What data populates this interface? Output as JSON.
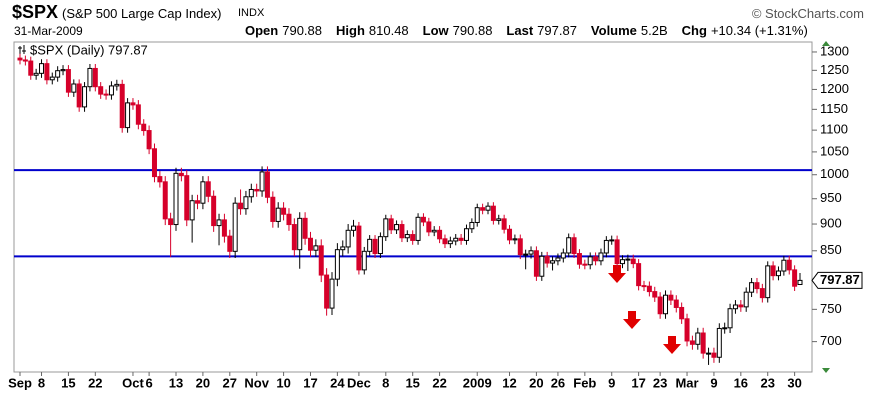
{
  "header": {
    "symbol": "$SPX",
    "name": "(S&P 500 Large Cap Index)",
    "exchange": "INDX",
    "source": "© StockCharts.com",
    "date": "31-Mar-2009",
    "quote": [
      {
        "label": "Open",
        "value": 790.88
      },
      {
        "label": "High",
        "value": 810.48
      },
      {
        "label": "Low",
        "value": 790.88
      },
      {
        "label": "Last",
        "value": 797.87
      },
      {
        "label": "Volume",
        "value": "5.2B"
      },
      {
        "label": "Chg",
        "value": "+10.34 (+1.31%)"
      }
    ]
  },
  "chart_data": {
    "type": "candlestick",
    "legend": "$SPX (Daily) 797.87",
    "log_scale": true,
    "grid": false,
    "up_color": "#000000",
    "down_color": "#d6002a",
    "line_color": "#0000cc",
    "ylim": [
      656,
      1328
    ],
    "yticks": [
      700,
      750,
      800,
      850,
      900,
      950,
      1000,
      1050,
      1100,
      1150,
      1200,
      1250,
      1300
    ],
    "lines": [
      1010,
      840
    ],
    "categories": [
      "Sep",
      null,
      null,
      null,
      "8",
      null,
      null,
      null,
      null,
      "15",
      null,
      null,
      null,
      null,
      "22",
      null,
      null,
      null,
      null,
      null,
      null,
      "Oct",
      null,
      null,
      "6",
      null,
      null,
      null,
      null,
      "13",
      null,
      null,
      null,
      null,
      "20",
      null,
      null,
      null,
      null,
      "27",
      null,
      null,
      null,
      null,
      "Nov",
      null,
      null,
      null,
      null,
      "10",
      null,
      null,
      null,
      null,
      "17",
      null,
      null,
      null,
      null,
      "24",
      null,
      null,
      null,
      "Dec",
      null,
      null,
      null,
      null,
      "8",
      null,
      null,
      null,
      null,
      "15",
      null,
      null,
      null,
      null,
      "22",
      null,
      null,
      null,
      null,
      null,
      null,
      "2009",
      null,
      null,
      null,
      null,
      null,
      "12",
      null,
      null,
      null,
      null,
      "20",
      null,
      null,
      null,
      "26",
      null,
      null,
      null,
      null,
      "Feb",
      null,
      null,
      null,
      null,
      "9",
      null,
      null,
      null,
      null,
      "17",
      null,
      null,
      null,
      "23",
      null,
      null,
      null,
      null,
      "Mar",
      null,
      null,
      null,
      null,
      "9",
      null,
      null,
      null,
      null,
      "16",
      null,
      null,
      null,
      null,
      "23",
      null,
      null,
      null,
      null,
      "30",
      null
    ],
    "open": [
      1283,
      1278,
      1275,
      1237,
      1242,
      1268,
      1225,
      1232,
      1249,
      1252,
      1193,
      1214,
      1156,
      1207,
      1255,
      1207,
      1188,
      1186,
      1209,
      1213,
      1106,
      1166,
      1161,
      1114,
      1099,
      1057,
      996,
      985,
      910,
      899,
      1003,
      998,
      908,
      946,
      941,
      985,
      955,
      897,
      908,
      877,
      849,
      941,
      930,
      954,
      969,
      966,
      1006,
      953,
      905,
      931,
      919,
      899,
      852,
      911,
      873,
      851,
      859,
      807,
      752,
      800,
      852,
      857,
      888,
      896,
      816,
      849,
      871,
      845,
      876,
      910,
      889,
      899,
      874,
      880,
      869,
      913,
      904,
      885,
      888,
      872,
      863,
      868,
      873,
      869,
      891,
      903,
      932,
      927,
      935,
      907,
      910,
      890,
      870,
      872,
      843,
      844,
      850,
      805,
      840,
      828,
      832,
      837,
      846,
      874,
      845,
      826,
      825,
      839,
      832,
      846,
      869,
      870,
      827,
      834,
      835,
      827,
      789,
      788,
      779,
      770,
      743,
      773,
      765,
      753,
      735,
      701,
      696,
      713,
      683,
      683,
      677,
      720,
      721,
      751,
      757,
      754,
      778,
      794,
      784,
      769,
      823,
      806,
      814,
      833,
      816,
      790.88
    ],
    "high": [
      1295,
      1290,
      1287,
      1254,
      1280,
      1280,
      1244,
      1261,
      1264,
      1264,
      1226,
      1226,
      1219,
      1267,
      1267,
      1219,
      1200,
      1221,
      1225,
      1225,
      1178,
      1178,
      1173,
      1126,
      1111,
      1069,
      1008,
      997,
      922,
      1015,
      1015,
      1010,
      958,
      958,
      997,
      997,
      967,
      920,
      920,
      889,
      953,
      969,
      966,
      981,
      981,
      1018,
      1018,
      965,
      943,
      943,
      931,
      911,
      923,
      923,
      885,
      871,
      871,
      819,
      812,
      864,
      869,
      900,
      908,
      904,
      857,
      879,
      879,
      884,
      918,
      918,
      907,
      907,
      888,
      888,
      921,
      921,
      912,
      896,
      896,
      880,
      876,
      881,
      881,
      899,
      911,
      940,
      940,
      943,
      943,
      918,
      918,
      898,
      880,
      880,
      852,
      858,
      858,
      848,
      848,
      840,
      845,
      854,
      882,
      882,
      853,
      834,
      847,
      847,
      854,
      877,
      878,
      878,
      842,
      843,
      843,
      835,
      797,
      796,
      787,
      778,
      781,
      781,
      773,
      761,
      743,
      709,
      721,
      721,
      691,
      691,
      728,
      729,
      759,
      765,
      765,
      786,
      802,
      802,
      792,
      831,
      831,
      822,
      841,
      841,
      824,
      810.48
    ],
    "low": [
      1266,
      1263,
      1225,
      1225,
      1230,
      1213,
      1213,
      1220,
      1237,
      1181,
      1181,
      1144,
      1144,
      1195,
      1195,
      1176,
      1174,
      1174,
      1197,
      1094,
      1094,
      1149,
      1102,
      1087,
      1045,
      984,
      973,
      898,
      839,
      887,
      986,
      896,
      865,
      929,
      929,
      943,
      885,
      860,
      865,
      837,
      837,
      918,
      918,
      942,
      954,
      954,
      941,
      893,
      893,
      907,
      887,
      840,
      818,
      861,
      839,
      839,
      795,
      740,
      741,
      788,
      840,
      845,
      876,
      808,
      808,
      841,
      837,
      837,
      868,
      881,
      881,
      866,
      866,
      861,
      861,
      896,
      877,
      877,
      864,
      855,
      855,
      860,
      861,
      861,
      883,
      895,
      919,
      919,
      899,
      899,
      882,
      862,
      862,
      835,
      817,
      836,
      797,
      797,
      820,
      815,
      824,
      829,
      838,
      837,
      818,
      817,
      817,
      824,
      824,
      838,
      861,
      819,
      819,
      814,
      819,
      781,
      780,
      771,
      762,
      735,
      735,
      757,
      745,
      727,
      693,
      688,
      688,
      675,
      666,
      669,
      669,
      712,
      713,
      743,
      746,
      746,
      770,
      776,
      761,
      761,
      798,
      798,
      806,
      808,
      780,
      790.88
    ],
    "close": [
      1278,
      1275,
      1237,
      1242,
      1268,
      1225,
      1232,
      1249,
      1252,
      1193,
      1214,
      1156,
      1207,
      1255,
      1207,
      1188,
      1186,
      1209,
      1213,
      1106,
      1166,
      1161,
      1114,
      1099,
      1057,
      996,
      985,
      910,
      899,
      1003,
      998,
      908,
      946,
      941,
      985,
      955,
      897,
      908,
      877,
      849,
      941,
      930,
      954,
      969,
      966,
      1006,
      953,
      905,
      931,
      919,
      899,
      852,
      911,
      873,
      851,
      859,
      807,
      752,
      800,
      852,
      857,
      888,
      896,
      816,
      849,
      871,
      845,
      876,
      910,
      889,
      899,
      874,
      880,
      869,
      913,
      904,
      885,
      888,
      872,
      863,
      868,
      873,
      869,
      891,
      903,
      932,
      927,
      935,
      907,
      910,
      890,
      870,
      872,
      843,
      844,
      850,
      805,
      840,
      828,
      832,
      837,
      846,
      874,
      845,
      826,
      825,
      839,
      832,
      846,
      869,
      870,
      827,
      834,
      835,
      827,
      789,
      788,
      779,
      770,
      743,
      773,
      765,
      753,
      735,
      701,
      696,
      713,
      683,
      683,
      677,
      720,
      721,
      751,
      757,
      754,
      778,
      794,
      784,
      769,
      823,
      806,
      814,
      833,
      816,
      788,
      797.87
    ]
  }
}
